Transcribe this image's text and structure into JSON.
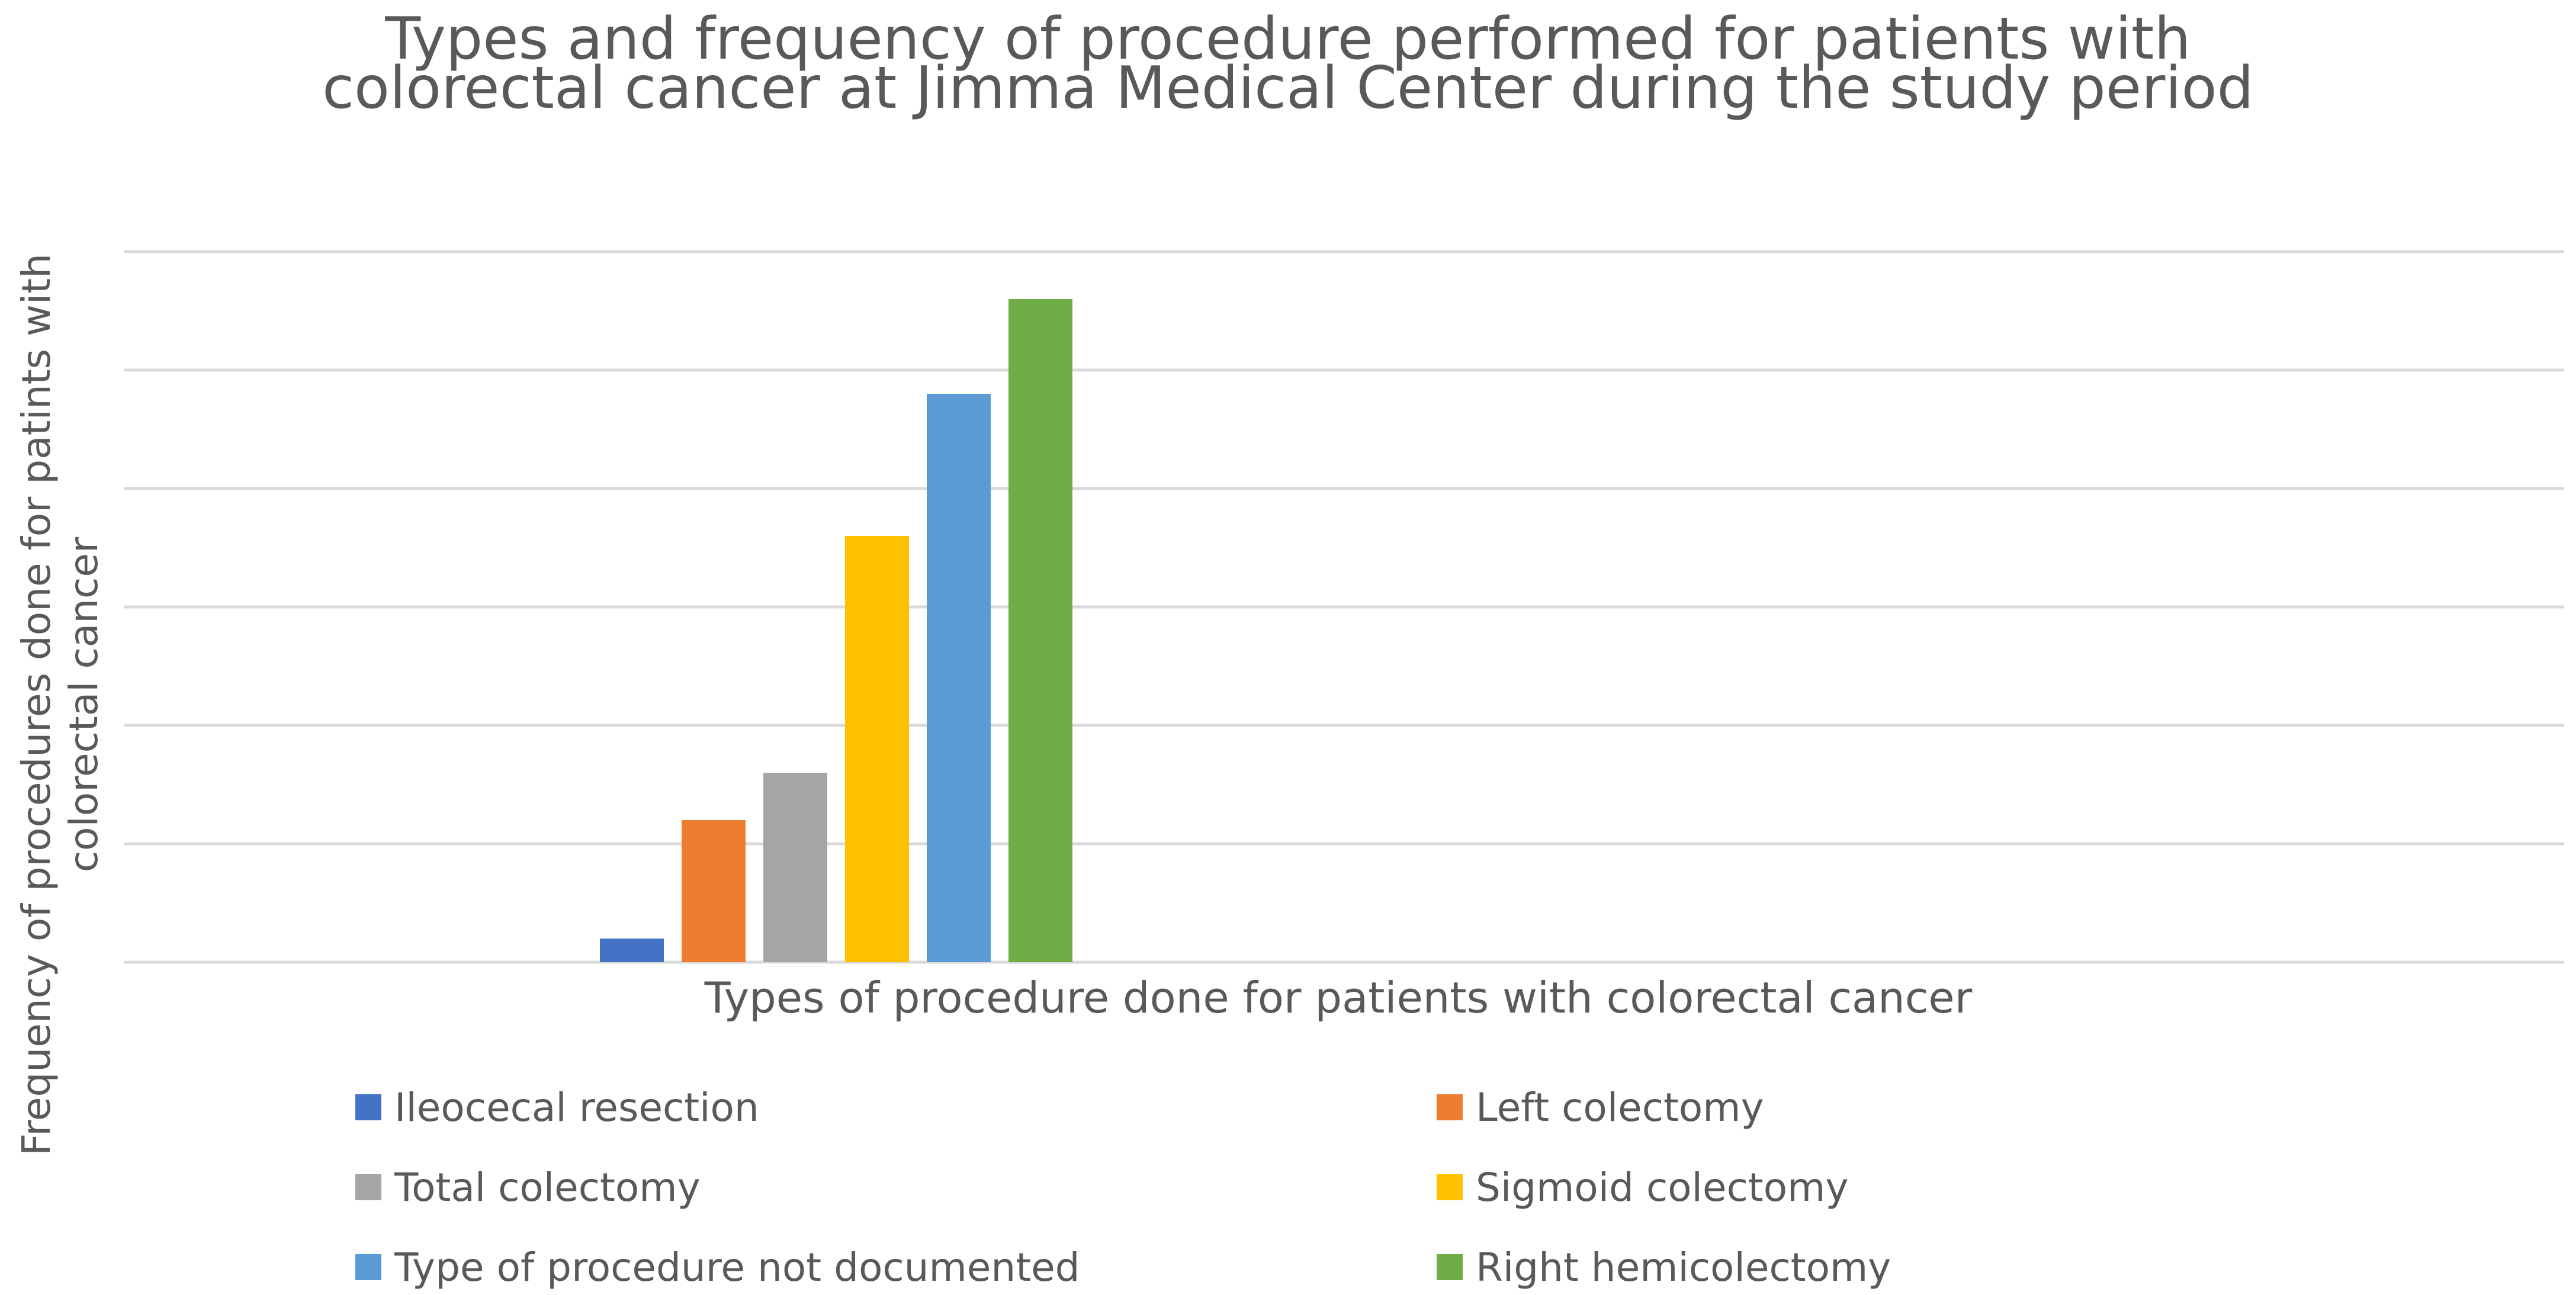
{
  "chart_data": {
    "type": "bar",
    "title_lines": [
      "Types and frequency of procedure performed for patients with",
      "colorectal cancer at Jimma Medical Center during the study period"
    ],
    "xlabel": "Types of procedure done for patients with colorectal cancer",
    "ylabel_lines": [
      "Frequency of procedures done for patints with",
      "colorectal cancer"
    ],
    "y_axis_ticks_shown": false,
    "gridlines": 7,
    "ylim": [
      0,
      30
    ],
    "categories": [
      ""
    ],
    "series": [
      {
        "name": "Ileocecal resection",
        "values": [
          1
        ],
        "color": "#4472C4"
      },
      {
        "name": "Left colectomy",
        "values": [
          6
        ],
        "color": "#ED7D31"
      },
      {
        "name": "Total colectomy",
        "values": [
          8
        ],
        "color": "#A5A5A5"
      },
      {
        "name": "Sigmoid colectomy",
        "values": [
          18
        ],
        "color": "#FFC000"
      },
      {
        "name": "Type of procedure not documented",
        "values": [
          24
        ],
        "color": "#5B9BD5"
      },
      {
        "name": "Right hemicolectomy",
        "values": [
          28
        ],
        "color": "#70AD47"
      }
    ],
    "legend_position": "bottom",
    "grid": true
  },
  "colors": {
    "gridline": "#D9D9D9",
    "text": "#595959",
    "background": "#FFFFFF"
  }
}
